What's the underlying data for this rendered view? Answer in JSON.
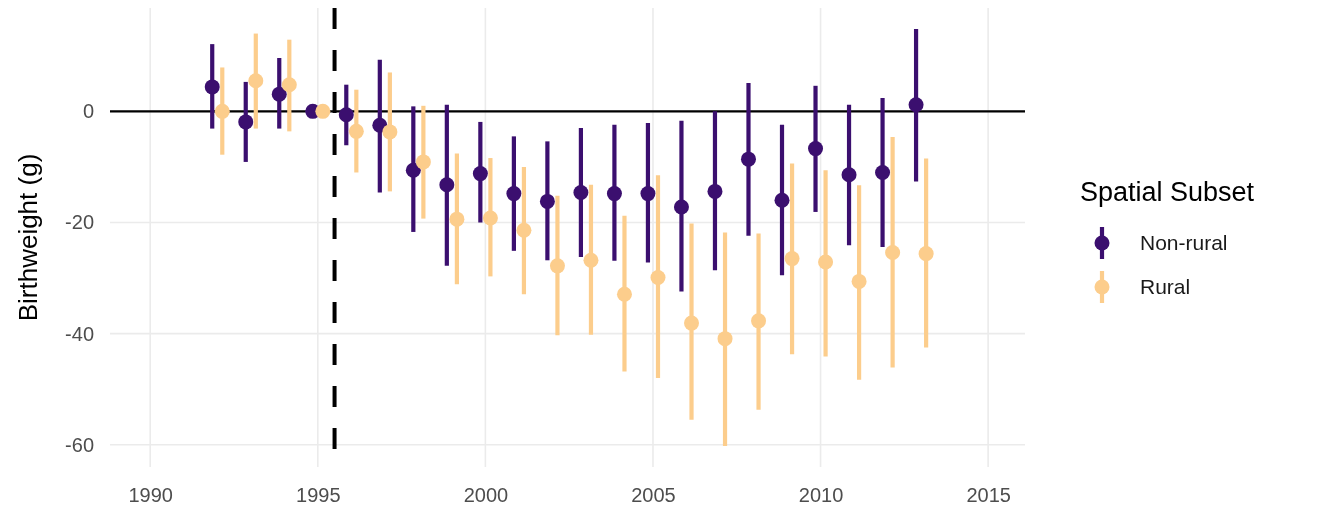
{
  "chart_data": {
    "type": "scatter",
    "ylabel": "Birthweight (g)",
    "legend_title": "Spatial Subset",
    "series": [
      {
        "name": "Non-rural",
        "color": "#3b0f6f",
        "x": [
          1991.85,
          1992.85,
          1993.85,
          1994.85,
          1995.85,
          1996.85,
          1997.85,
          1998.85,
          1999.85,
          2000.85,
          2001.85,
          2002.85,
          2003.85,
          2004.85,
          2005.85,
          2006.85,
          2007.85,
          2008.85,
          2009.85,
          2010.85,
          2011.85,
          2012.85
        ],
        "values": [
          4.4,
          -1.9,
          3.1,
          0,
          -0.6,
          -2.5,
          -10.6,
          -13.2,
          -11.2,
          -14.8,
          -16.2,
          -14.6,
          -14.8,
          -14.8,
          -17.2,
          -14.4,
          -8.6,
          -16.0,
          -6.7,
          -11.4,
          -11.0,
          1.2
        ],
        "errors": [
          [
            -3.1,
            12.1
          ],
          [
            -9.1,
            5.3
          ],
          [
            -3.1,
            9.6
          ],
          null,
          [
            -6.1,
            4.8
          ],
          [
            -14.6,
            9.3
          ],
          [
            -21.7,
            0.9
          ],
          [
            -27.8,
            1.2
          ],
          [
            -20.0,
            -1.9
          ],
          [
            -25.1,
            -4.5
          ],
          [
            -26.8,
            -5.4
          ],
          [
            -26.2,
            -3.0
          ],
          [
            -26.9,
            -2.4
          ],
          [
            -27.2,
            -2.1
          ],
          [
            -32.4,
            -1.7
          ],
          [
            -28.6,
            0.0
          ],
          [
            -22.4,
            5.1
          ],
          [
            -29.5,
            -2.4
          ],
          [
            -18.1,
            4.6
          ],
          [
            -24.1,
            1.2
          ],
          [
            -24.4,
            2.4
          ],
          [
            -12.6,
            14.8
          ]
        ]
      },
      {
        "name": "Rural",
        "color": "#fccd8c",
        "x": [
          1992.15,
          1993.15,
          1994.15,
          1995.15,
          1996.15,
          1997.15,
          1998.15,
          1999.15,
          2000.15,
          2001.15,
          2002.15,
          2003.15,
          2004.15,
          2005.15,
          2006.15,
          2007.15,
          2008.15,
          2009.15,
          2010.15,
          2011.15,
          2012.15,
          2013.15
        ],
        "values": [
          0.0,
          5.5,
          4.8,
          0,
          -3.6,
          -3.7,
          -9.1,
          -19.4,
          -19.2,
          -21.4,
          -27.8,
          -26.8,
          -32.9,
          -29.9,
          -38.1,
          -40.9,
          -37.7,
          -26.5,
          -27.1,
          -30.6,
          -25.4,
          -25.6
        ],
        "errors": [
          [
            -7.8,
            7.9
          ],
          [
            -3.1,
            14.0
          ],
          [
            -3.6,
            12.9
          ],
          null,
          [
            -11.0,
            3.9
          ],
          [
            -14.4,
            7.0
          ],
          [
            -19.3,
            1.0
          ],
          [
            -31.1,
            -7.6
          ],
          [
            -29.7,
            -8.4
          ],
          [
            -32.9,
            -10.0
          ],
          [
            -40.3,
            -15.2
          ],
          [
            -40.2,
            -13.2
          ],
          [
            -46.8,
            -18.8
          ],
          [
            -48.0,
            -11.5
          ],
          [
            -55.5,
            -20.2
          ],
          [
            -60.2,
            -21.8
          ],
          [
            -53.7,
            -22.0
          ],
          [
            -43.7,
            -9.4
          ],
          [
            -44.1,
            -10.6
          ],
          [
            -48.3,
            -13.3
          ],
          [
            -46.1,
            -4.6
          ],
          [
            -42.5,
            -8.5
          ]
        ]
      }
    ],
    "xlim": [
      1988.8,
      2016.1
    ],
    "ylim": [
      -64,
      18.6
    ],
    "xticks": [
      1990,
      1995,
      2000,
      2005,
      2010,
      2015
    ],
    "yticks": [
      -60,
      -40,
      -20,
      0
    ],
    "grid": true,
    "legend": "right",
    "marker": "circle",
    "ref_lines": [
      {
        "axis": "y",
        "value": 0,
        "color": "#000000"
      },
      {
        "axis": "x",
        "value": 1995.5,
        "color": "#000000",
        "line_style": "dashed"
      }
    ]
  }
}
